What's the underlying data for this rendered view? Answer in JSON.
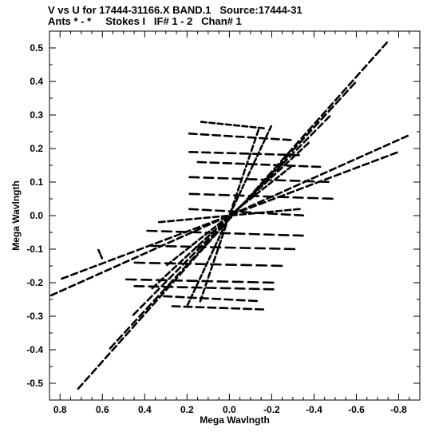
{
  "header": {
    "line1": "V vs U for 17444-31166.X BAND.1   Source:17444-31",
    "line2": "Ants * - *     Stokes I   IF# 1 - 2   Chan# 1"
  },
  "chart_data": {
    "type": "scatter",
    "xlabel": "Mega Wavlngth",
    "ylabel": "Mega Wavlngth",
    "xlim": [
      0.85,
      -0.9
    ],
    "ylim": [
      -0.55,
      0.55
    ],
    "x_reversed": true,
    "x_ticks": [
      0.8,
      0.6,
      0.4,
      0.2,
      0.0,
      -0.2,
      -0.4,
      -0.6,
      -0.8
    ],
    "x_tick_labels": [
      "0.8",
      "0.6",
      "0.4",
      "0.2",
      "0.0",
      "-0.2",
      "-0.4",
      "-0.6",
      "-0.8"
    ],
    "y_ticks": [
      0.5,
      0.4,
      0.3,
      0.2,
      0.1,
      0.0,
      -0.1,
      -0.2,
      -0.3,
      -0.4,
      -0.5
    ],
    "y_tick_labels": [
      "0.5",
      "0.4",
      "0.3",
      "0.2",
      "0.1",
      "0.0",
      "-0.1",
      "-0.2",
      "-0.3",
      "-0.4",
      "-0.5"
    ],
    "grid": false,
    "marker_color": "#000000",
    "tracks": [
      {
        "from": [
          -0.75,
          0.52
        ],
        "to": [
          0.72,
          -0.52
        ],
        "segments": 46
      },
      {
        "from": [
          -0.6,
          0.4
        ],
        "to": [
          0.57,
          -0.4
        ],
        "segments": 34
      },
      {
        "from": [
          -0.48,
          0.3
        ],
        "to": [
          0.46,
          -0.3
        ],
        "segments": 28
      },
      {
        "from": [
          -0.38,
          0.22
        ],
        "to": [
          0.37,
          -0.22
        ],
        "segments": 24
      },
      {
        "from": [
          -0.3,
          0.15
        ],
        "to": [
          0.3,
          -0.15
        ],
        "segments": 20
      },
      {
        "from": [
          -0.85,
          0.24
        ],
        "to": [
          0.85,
          -0.24
        ],
        "segments": 40
      },
      {
        "from": [
          -0.8,
          0.19
        ],
        "to": [
          0.8,
          -0.19
        ],
        "segments": 36
      },
      {
        "from": [
          -0.2,
          0.27
        ],
        "to": [
          0.2,
          -0.27
        ],
        "segments": 28
      },
      {
        "from": [
          -0.14,
          0.26
        ],
        "to": [
          0.14,
          -0.26
        ],
        "segments": 22
      },
      {
        "from": [
          -0.34,
          0.02
        ],
        "to": [
          0.34,
          -0.02
        ],
        "segments": 16
      },
      {
        "from": [
          0.14,
          0.28
        ],
        "to": [
          -0.17,
          0.26
        ],
        "segments": 8
      },
      {
        "from": [
          0.2,
          0.245
        ],
        "to": [
          -0.3,
          0.225
        ],
        "segments": 9
      },
      {
        "from": [
          0.2,
          0.19
        ],
        "to": [
          -0.34,
          0.18
        ],
        "segments": 9
      },
      {
        "from": [
          0.16,
          0.16
        ],
        "to": [
          -0.44,
          0.145
        ],
        "segments": 10
      },
      {
        "from": [
          0.2,
          0.115
        ],
        "to": [
          -0.48,
          0.1
        ],
        "segments": 10
      },
      {
        "from": [
          0.2,
          0.065
        ],
        "to": [
          -0.5,
          0.05
        ],
        "segments": 10
      },
      {
        "from": [
          0.2,
          0.02
        ],
        "to": [
          -0.36,
          0.0
        ],
        "segments": 9
      },
      {
        "from": [
          0.4,
          -0.045
        ],
        "to": [
          -0.36,
          -0.06
        ],
        "segments": 11
      },
      {
        "from": [
          0.38,
          -0.09
        ],
        "to": [
          -0.32,
          -0.1
        ],
        "segments": 10
      },
      {
        "from": [
          0.46,
          -0.14
        ],
        "to": [
          -0.26,
          -0.15
        ],
        "segments": 10
      },
      {
        "from": [
          0.5,
          -0.19
        ],
        "to": [
          -0.22,
          -0.2
        ],
        "segments": 10
      },
      {
        "from": [
          0.46,
          -0.21
        ],
        "to": [
          -0.22,
          -0.22
        ],
        "segments": 10
      },
      {
        "from": [
          0.32,
          -0.24
        ],
        "to": [
          -0.14,
          -0.255
        ],
        "segments": 8
      },
      {
        "from": [
          0.28,
          -0.27
        ],
        "to": [
          -0.17,
          -0.28
        ],
        "segments": 8
      },
      {
        "from": [
          0.6,
          -0.13
        ],
        "to": [
          0.62,
          -0.1
        ],
        "segments": 2
      }
    ]
  }
}
